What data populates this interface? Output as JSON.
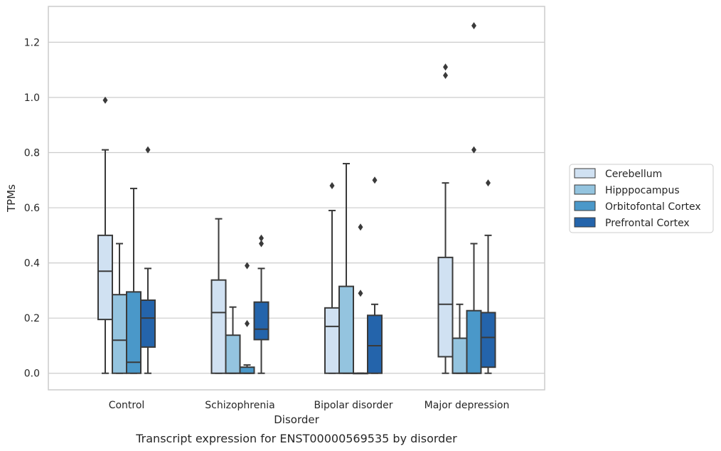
{
  "chart_data": {
    "type": "box",
    "xlabel": "Disorder",
    "ylabel": "TPMs",
    "caption": "Transcript expression for ENST00000569535 by disorder",
    "ylim": [
      -0.06,
      1.33
    ],
    "yticks": [
      "0.0",
      "0.2",
      "0.4",
      "0.6",
      "0.8",
      "1.0",
      "1.2"
    ],
    "grid": "horizontal",
    "legend_position": "right",
    "categories": [
      "Control",
      "Schizophrenia",
      "Bipolar disorder",
      "Major depression"
    ],
    "series": [
      {
        "name": "Cerebellum",
        "color": "#d0e1f2",
        "boxes": [
          {
            "whisker_low": 0.0,
            "q1": 0.195,
            "median": 0.37,
            "q3": 0.5,
            "whisker_high": 0.81,
            "outliers": [
              0.99
            ]
          },
          {
            "whisker_low": 0.0,
            "q1": 0.0,
            "median": 0.22,
            "q3": 0.338,
            "whisker_high": 0.56,
            "outliers": []
          },
          {
            "whisker_low": 0.0,
            "q1": 0.0,
            "median": 0.17,
            "q3": 0.237,
            "whisker_high": 0.59,
            "outliers": [
              0.68
            ]
          },
          {
            "whisker_low": 0.0,
            "q1": 0.06,
            "median": 0.25,
            "q3": 0.42,
            "whisker_high": 0.69,
            "outliers": [
              1.08,
              1.11
            ]
          }
        ]
      },
      {
        "name": "Hipppocampus",
        "color": "#94c4df",
        "boxes": [
          {
            "whisker_low": 0.0,
            "q1": 0.0,
            "median": 0.12,
            "q3": 0.285,
            "whisker_high": 0.47,
            "outliers": []
          },
          {
            "whisker_low": 0.0,
            "q1": 0.0,
            "median": 0.0,
            "q3": 0.138,
            "whisker_high": 0.24,
            "outliers": []
          },
          {
            "whisker_low": 0.0,
            "q1": 0.0,
            "median": 0.0,
            "q3": 0.315,
            "whisker_high": 0.76,
            "outliers": []
          },
          {
            "whisker_low": 0.0,
            "q1": 0.0,
            "median": 0.0,
            "q3": 0.127,
            "whisker_high": 0.25,
            "outliers": []
          }
        ]
      },
      {
        "name": "Orbitofontal Cortex",
        "color": "#4a98c9",
        "boxes": [
          {
            "whisker_low": 0.0,
            "q1": 0.0,
            "median": 0.04,
            "q3": 0.295,
            "whisker_high": 0.67,
            "outliers": []
          },
          {
            "whisker_low": 0.0,
            "q1": 0.0,
            "median": 0.0,
            "q3": 0.022,
            "whisker_high": 0.03,
            "outliers": [
              0.18,
              0.39
            ]
          },
          {
            "whisker_low": 0.0,
            "q1": 0.0,
            "median": 0.0,
            "q3": 0.0,
            "whisker_high": 0.0,
            "outliers": [
              0.29,
              0.53
            ]
          },
          {
            "whisker_low": 0.0,
            "q1": 0.0,
            "median": 0.0,
            "q3": 0.227,
            "whisker_high": 0.47,
            "outliers": [
              0.81,
              1.26
            ]
          }
        ]
      },
      {
        "name": "Prefrontal Cortex",
        "color": "#2464ab",
        "boxes": [
          {
            "whisker_low": 0.0,
            "q1": 0.095,
            "median": 0.2,
            "q3": 0.265,
            "whisker_high": 0.38,
            "outliers": [
              0.81
            ]
          },
          {
            "whisker_low": 0.0,
            "q1": 0.122,
            "median": 0.16,
            "q3": 0.258,
            "whisker_high": 0.38,
            "outliers": [
              0.47,
              0.49
            ]
          },
          {
            "whisker_low": 0.0,
            "q1": 0.0,
            "median": 0.1,
            "q3": 0.21,
            "whisker_high": 0.25,
            "outliers": [
              0.7
            ]
          },
          {
            "whisker_low": 0.0,
            "q1": 0.022,
            "median": 0.13,
            "q3": 0.22,
            "whisker_high": 0.5,
            "outliers": [
              0.69
            ]
          }
        ]
      }
    ]
  }
}
